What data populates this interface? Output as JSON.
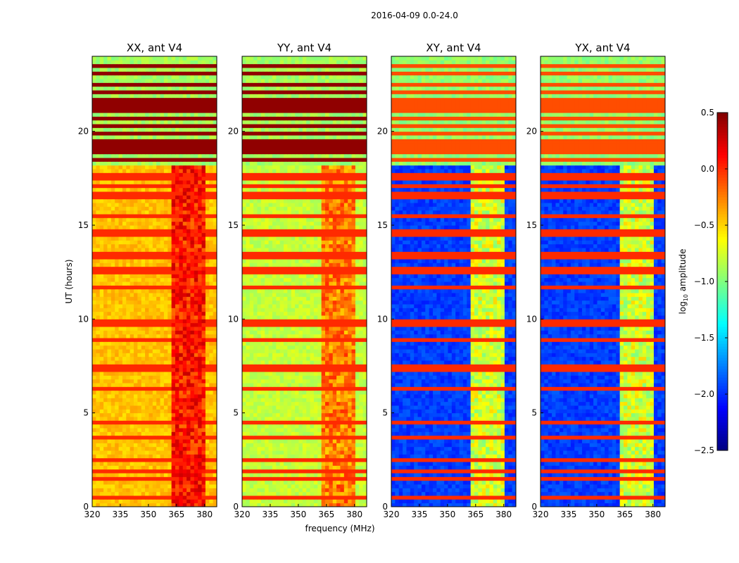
{
  "chart_data": {
    "type": "heatmap",
    "title": "2016-04-09 0.0-24.0",
    "xlabel": "frequency (MHz)",
    "ylabel": "UT (hours)",
    "xlim": [
      320,
      386.5
    ],
    "ylim": [
      0,
      24
    ],
    "xticks": [
      320,
      335,
      350,
      365,
      380
    ],
    "yticks": [
      0,
      5,
      10,
      15,
      20
    ],
    "colorbar": {
      "label": "log10 amplitude",
      "label_main": "log",
      "label_sub": "10",
      "label_rest": " amplitude",
      "colormap": "jet",
      "range": [
        -2.5,
        0.5
      ],
      "ticks": [
        "0.5",
        "0.0",
        "−0.5",
        "−1.0",
        "−1.5",
        "−2.0",
        "−2.5"
      ],
      "tick_values": [
        0.5,
        0.0,
        -0.5,
        -1.0,
        -1.5,
        -2.0,
        -2.5
      ]
    },
    "panels": [
      {
        "title": "XX, ant V4",
        "baseline": -0.45,
        "band_level": 0.05,
        "upper_level": -0.9,
        "upper_stripe": 0.45
      },
      {
        "title": "YY, ant V4",
        "baseline": -0.8,
        "band_level": -0.25,
        "upper_level": -0.9,
        "upper_stripe": 0.45
      },
      {
        "title": "XY, ant V4",
        "baseline": -1.95,
        "band_level": -0.75,
        "upper_level": -0.95,
        "upper_stripe": -0.1
      },
      {
        "title": "YX, ant V4",
        "baseline": -1.95,
        "band_level": -0.75,
        "upper_level": -0.95,
        "upper_stripe": -0.1
      }
    ],
    "band_MHz": [
      363,
      381
    ],
    "band_end_hours": 18.2,
    "upper_region_start_hours": 18.3,
    "rfi_hours": [
      0.5,
      1.5,
      1.9,
      2.5,
      3.7,
      4.5,
      6.3,
      7.4,
      8.9,
      9.8,
      11.7,
      12.6,
      13.4,
      14.6,
      15.5,
      16.6,
      17.1,
      17.6
    ],
    "upper_stripe_hours": [
      18.5,
      18.9,
      19.2,
      19.5,
      19.9,
      20.3,
      20.7,
      21.2,
      21.6,
      22.1,
      22.5,
      23.1,
      23.5
    ]
  }
}
